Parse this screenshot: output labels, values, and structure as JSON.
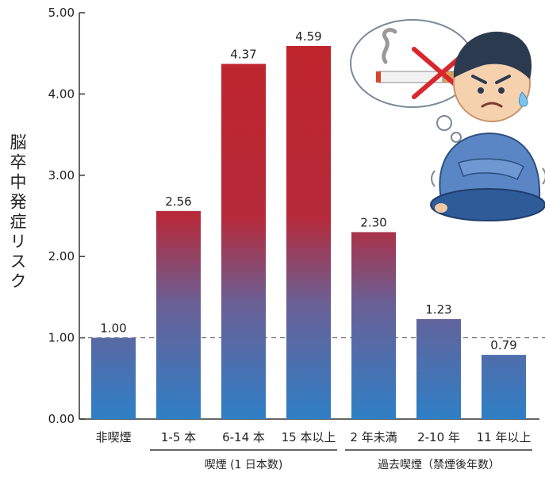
{
  "chart_data": {
    "type": "bar",
    "ylabel": "脳卒中発症リスク",
    "ylim": [
      0,
      5
    ],
    "yticks": [
      "0.00",
      "1.00",
      "2.00",
      "3.00",
      "4.00",
      "5.00"
    ],
    "categories": [
      "非喫煙",
      "1-5 本",
      "6-14 本",
      "15 本以上",
      "2 年未満",
      "2-10 年",
      "11 年以上"
    ],
    "values": [
      1.0,
      2.56,
      4.37,
      4.59,
      2.3,
      1.23,
      0.79
    ],
    "value_labels": [
      "1.00",
      "2.56",
      "4.37",
      "4.59",
      "2.30",
      "1.23",
      "0.79"
    ],
    "reference_line": 1.0,
    "groups": [
      {
        "label": "喫煙 (1 日本数)",
        "from": 1,
        "to": 3
      },
      {
        "label": "過去喫煙（禁煙後年数）",
        "from": 4,
        "to": 6
      }
    ],
    "grid": false,
    "colors": {
      "top": "#c0242b",
      "bottom": "#2f7fc6",
      "axis": "#333333"
    }
  },
  "illustration": {
    "icon": "no-smoking-person-icon"
  }
}
